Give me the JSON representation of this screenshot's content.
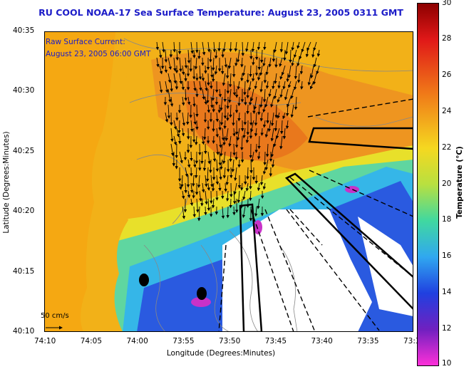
{
  "title": "RU COOL  NOAA-17  Sea Surface Temperature:  August 23, 2005 0311 GMT",
  "annotation": {
    "line1": "Raw Surface Current:",
    "line2": "August 23, 2005 06:00 GMT"
  },
  "scale_label": "50 cm/s",
  "axes": {
    "xlabel": "Longitude (Degrees:Minutes)",
    "ylabel": "Latitude (Degrees:Minutes)",
    "x_ticks": [
      "74:10",
      "74:05",
      "74:00",
      "73:55",
      "73:50",
      "73:45",
      "73:40",
      "73:35",
      "73:3"
    ],
    "y_ticks": [
      "40:35",
      "40:30",
      "40:25",
      "40:20",
      "40:15",
      "40:10"
    ]
  },
  "colorbar": {
    "label": "Temperature (°C)",
    "ticks": [
      "30",
      "28",
      "26",
      "24",
      "22",
      "20",
      "18",
      "16",
      "14",
      "12",
      "10"
    ],
    "min": 10,
    "max": 30
  }
}
